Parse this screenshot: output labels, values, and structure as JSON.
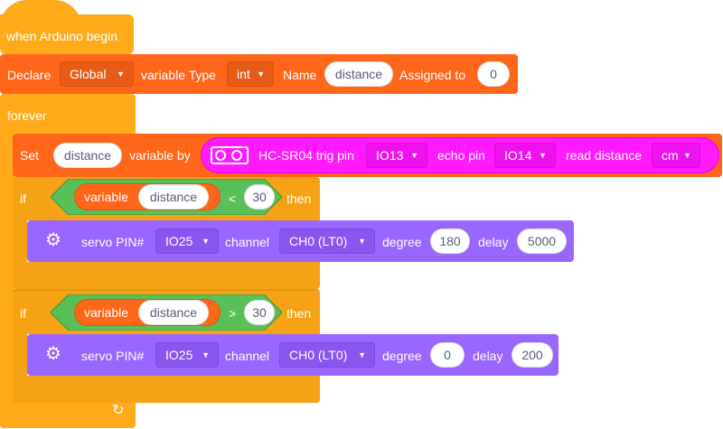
{
  "hat": {
    "label": "when Arduino begin"
  },
  "declare": {
    "label": "Declare",
    "scope": "Global",
    "type_label": "variable Type",
    "type": "int",
    "name_label": "Name",
    "name": "distance",
    "assign_label": "Assigned to",
    "value": "0"
  },
  "forever": {
    "label": "forever",
    "loop_icon": "loop-arrow-icon"
  },
  "set": {
    "label": "Set",
    "variable": "distance",
    "by_label": "variable by",
    "sensor": {
      "icon": "ultrasonic-sensor-icon",
      "label": "HC-SR04 trig pin",
      "trig": "IO13",
      "echo_label": "echo pin",
      "echo": "IO14",
      "read_label": "read distance",
      "unit": "cm"
    }
  },
  "if1": {
    "if_label": "if",
    "then_label": "then",
    "var_label": "variable",
    "var_name": "distance",
    "op": "<",
    "value": "30",
    "servo": {
      "icon": "servo-motor-icon",
      "pin_label": "servo PIN#",
      "pin": "IO25",
      "channel_label": "channel",
      "channel": "CH0 (LT0)",
      "degree_label": "degree",
      "degree": "180",
      "delay_label": "delay",
      "delay": "5000"
    }
  },
  "if2": {
    "if_label": "if",
    "then_label": "then",
    "var_label": "variable",
    "var_name": "distance",
    "op": ">",
    "value": "30",
    "servo": {
      "icon": "servo-motor-icon",
      "pin_label": "servo PIN#",
      "pin": "IO25",
      "channel_label": "channel",
      "channel": "CH0 (LT0)",
      "degree_label": "degree",
      "degree": "0",
      "delay_label": "delay",
      "delay": "200"
    }
  },
  "colors": {
    "control": "#ffab19",
    "variables": "#ff661a",
    "operators": "#59c059",
    "servo": "#9966ff",
    "sensor": "#ff1aff"
  }
}
